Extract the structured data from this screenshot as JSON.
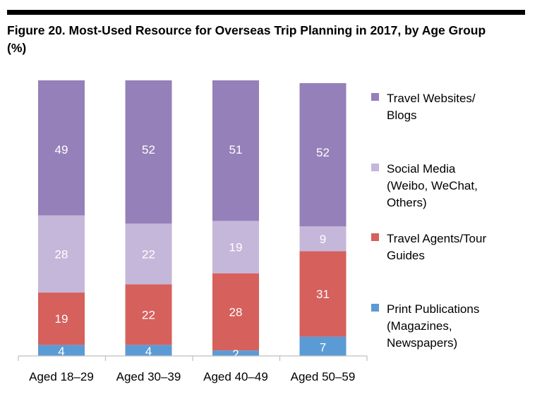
{
  "title": "Figure 20. Most-Used Resource for Overseas Trip Planning in 2017, by Age Group (%)",
  "chart_data": {
    "type": "bar",
    "stacked": true,
    "categories": [
      "Aged 18–29",
      "Aged 30–39",
      "Aged 40–49",
      "Aged 50–59"
    ],
    "series": [
      {
        "name": "Print Publications (Magazines, Newspapers)",
        "color": "#5b9bd5",
        "values": [
          4,
          4,
          2,
          7
        ]
      },
      {
        "name": "Travel Agents/Tour Guides",
        "color": "#d6605c",
        "values": [
          19,
          22,
          28,
          31
        ]
      },
      {
        "name": "Social Media (Weibo, WeChat, Others)",
        "color": "#c5b7d9",
        "values": [
          28,
          22,
          19,
          9
        ]
      },
      {
        "name": "Travel Websites/ Blogs",
        "color": "#9580b9",
        "values": [
          49,
          52,
          51,
          52
        ]
      }
    ],
    "ylim": [
      0,
      100
    ],
    "grid": false,
    "legend_position": "right"
  },
  "legend": [
    {
      "label": "Travel Websites/\nBlogs",
      "color": "#9580b9"
    },
    {
      "label": "Social Media\n(Weibo, WeChat,\nOthers)",
      "color": "#c5b7d9"
    },
    {
      "label": "Travel Agents/Tour\nGuides",
      "color": "#d6605c"
    },
    {
      "label": "Print Publications\n(Magazines,\nNewspapers)",
      "color": "#5b9bd5"
    }
  ]
}
